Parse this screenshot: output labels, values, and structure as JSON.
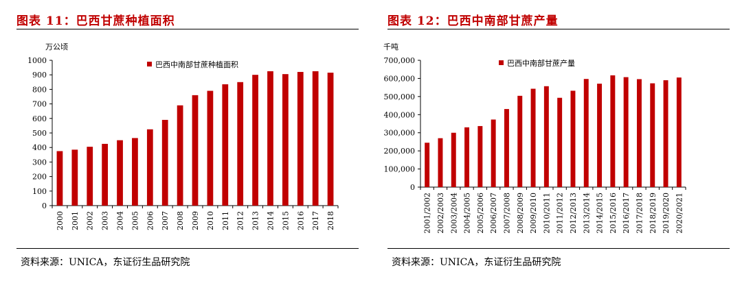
{
  "panels": [
    {
      "title": "图表 11：巴西甘蔗种植面积",
      "source": "资料来源：UNICA，东证衍生品研究院"
    },
    {
      "title": "图表 12：巴西中南部甘蔗产量",
      "source": "资料来源：UNICA，东证衍生品研究院"
    }
  ],
  "chart_data": [
    {
      "type": "bar",
      "title": "巴西甘蔗种植面积",
      "ylabel": "万公顷",
      "xlabel": "",
      "ylim": [
        0,
        1000
      ],
      "yticks": [
        "0",
        "100",
        "200",
        "300",
        "400",
        "500",
        "600",
        "700",
        "800",
        "900",
        "1000"
      ],
      "legend": "top-center",
      "color": "#c00000",
      "categories": [
        "2000",
        "2001",
        "2002",
        "2003",
        "2004",
        "2005",
        "2006",
        "2007",
        "2008",
        "2009",
        "2010",
        "2011",
        "2012",
        "2013",
        "2014",
        "2015",
        "2016",
        "2017",
        "2018"
      ],
      "series": [
        {
          "name": "巴西中南部甘蔗种植面积",
          "values": [
            375,
            385,
            405,
            425,
            450,
            465,
            525,
            590,
            690,
            760,
            790,
            835,
            850,
            900,
            925,
            905,
            920,
            925,
            915
          ]
        }
      ],
      "grid": false
    },
    {
      "type": "bar",
      "title": "巴西中南部甘蔗产量",
      "ylabel": "千吨",
      "xlabel": "",
      "ylim": [
        0,
        700000
      ],
      "yticks": [
        "0",
        "100,000",
        "200,000",
        "300,000",
        "400,000",
        "500,000",
        "600,000",
        "700,000"
      ],
      "legend": "top-center",
      "color": "#c00000",
      "categories": [
        "2001/2002",
        "2002/2003",
        "2003/2004",
        "2004/2005",
        "2005/2006",
        "2006/2007",
        "2007/2008",
        "2008/2009",
        "2009/2010",
        "2010/2011",
        "2011/2012",
        "2012/2013",
        "2013/2014",
        "2014/2015",
        "2015/2016",
        "2016/2017",
        "2017/2018",
        "2018/2019",
        "2019/2020",
        "2020/2021"
      ],
      "series": [
        {
          "name": "巴西中南部甘蔗产量",
          "values": [
            245000,
            270000,
            300000,
            330000,
            337000,
            373000,
            431000,
            504000,
            543000,
            557000,
            493000,
            532000,
            597000,
            571000,
            617000,
            607000,
            596000,
            573000,
            590000,
            605000
          ]
        }
      ],
      "grid": false
    }
  ]
}
